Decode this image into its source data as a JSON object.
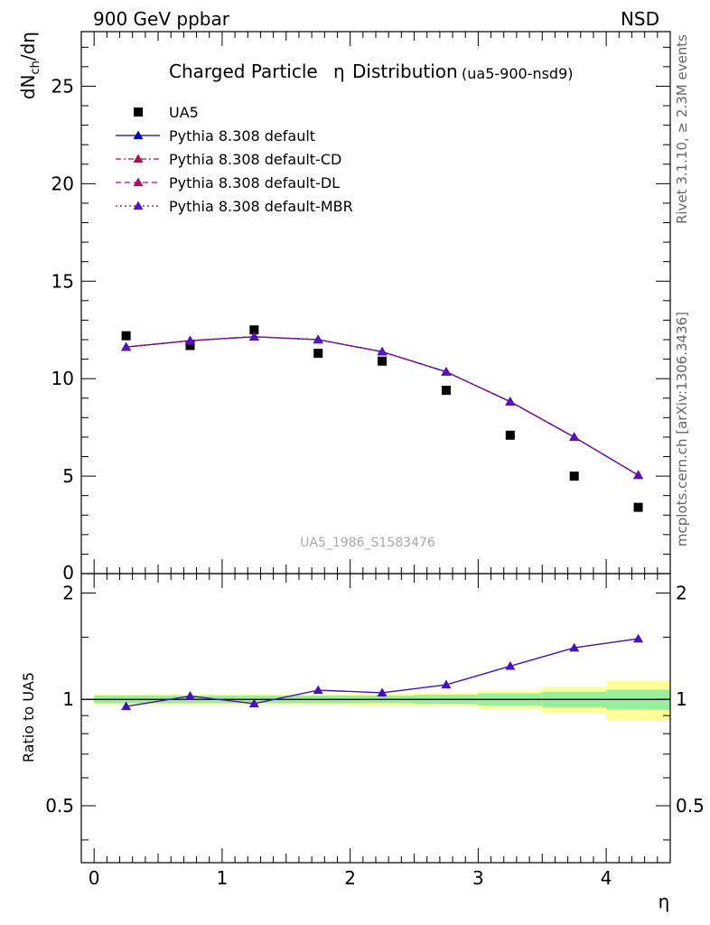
{
  "header": {
    "left": "900 GeV ppbar",
    "right": "NSD"
  },
  "side_labels": {
    "rivet": "Rivet 3.1.10, ≥ 2.3M events",
    "mcplots": "mcplots.cern.ch [arXiv:1306.3436]"
  },
  "watermark": "UA5_1986_S1583476",
  "chart_data": [
    {
      "type": "scatter",
      "title": "Charged Particle",
      "title_symbol": "η",
      "title_suffix": "Distribution",
      "title_tag": "(ua5-900-nsd9)",
      "ylabel": "dN_ch/dη",
      "xlim": [
        -0.1,
        4.5
      ],
      "ylim": [
        0,
        27.8
      ],
      "yticks": [
        5,
        10,
        15,
        20,
        25
      ],
      "ytick_bottom_label": "0",
      "legend_position": "top-left",
      "x": [
        0.25,
        0.75,
        1.25,
        1.75,
        2.25,
        2.75,
        3.25,
        3.75,
        4.25
      ],
      "series": [
        {
          "name": "UA5",
          "marker": "square",
          "color": "#000000",
          "values": [
            12.2,
            11.7,
            12.5,
            11.3,
            10.9,
            9.4,
            7.1,
            5.0,
            3.4
          ]
        },
        {
          "name": "Pythia 8.308 default",
          "style": "solid",
          "color": "#0000cc",
          "values": [
            11.62,
            11.95,
            12.15,
            12.0,
            11.38,
            10.35,
            8.82,
            7.0,
            5.05
          ]
        },
        {
          "name": "Pythia 8.308 default-CD",
          "style": "dashdot",
          "color": "#aa1144",
          "values": [
            11.62,
            11.95,
            12.15,
            12.0,
            11.38,
            10.35,
            8.82,
            7.0,
            5.05
          ]
        },
        {
          "name": "Pythia 8.308 default-DL",
          "style": "dashed",
          "color": "#aa1166",
          "values": [
            11.62,
            11.95,
            12.15,
            12.0,
            11.38,
            10.35,
            8.82,
            7.0,
            5.05
          ]
        },
        {
          "name": "Pythia 8.308 default-MBR",
          "style": "dotted",
          "color": "#5511bb",
          "values": [
            11.62,
            11.95,
            12.15,
            12.0,
            11.38,
            10.35,
            8.82,
            7.0,
            5.05
          ]
        }
      ]
    },
    {
      "type": "line",
      "ylabel": "Ratio to UA5",
      "xlabel": "η",
      "xlim": [
        -0.1,
        4.5
      ],
      "ylim": [
        0.345,
        2.27
      ],
      "ylog": true,
      "xticks": [
        0,
        1,
        2,
        3,
        4
      ],
      "yticks": [
        0.5,
        1,
        2
      ],
      "ytick_labels": [
        "0.5",
        "1",
        "2"
      ],
      "bands": {
        "x_edges": [
          0,
          0.5,
          1,
          1.5,
          2,
          2.5,
          3,
          3.5,
          4,
          4.5
        ],
        "stat_color": "#99ee99",
        "total_color": "#ffff99",
        "stat_half": [
          0.025,
          0.025,
          0.025,
          0.025,
          0.025,
          0.03,
          0.04,
          0.05,
          0.065
        ],
        "total_half": [
          0.035,
          0.035,
          0.035,
          0.035,
          0.04,
          0.045,
          0.06,
          0.085,
          0.13
        ]
      },
      "x": [
        0.25,
        0.75,
        1.25,
        1.75,
        2.25,
        2.75,
        3.25,
        3.75,
        4.25
      ],
      "series": [
        {
          "name": "Pythia 8.308 default-MBR",
          "color": "#4411bb",
          "values": [
            0.955,
            1.022,
            0.973,
            1.062,
            1.044,
            1.1,
            1.242,
            1.4,
            1.485
          ]
        }
      ]
    }
  ]
}
